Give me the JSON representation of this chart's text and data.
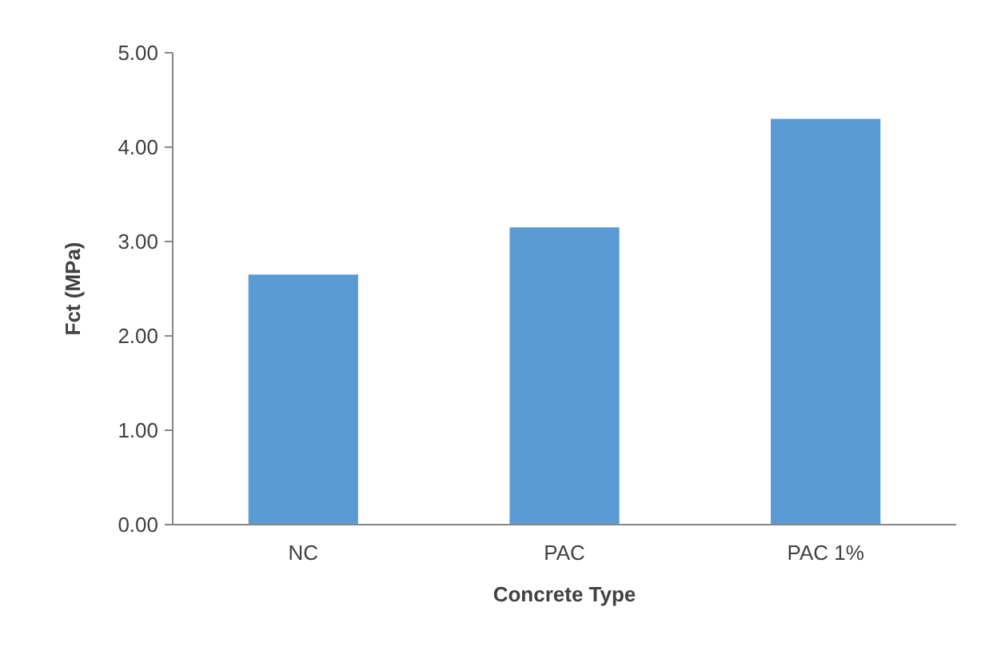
{
  "chart_data": {
    "type": "bar",
    "xlabel": "Concrete Type",
    "ylabel": "Fct (MPa)",
    "categories": [
      "NC",
      "PAC",
      "PAC 1%"
    ],
    "values": [
      2.65,
      3.15,
      4.3
    ],
    "color": "#5b9bd5",
    "ylim": [
      0,
      5
    ],
    "yticks": [
      {
        "value": 0,
        "label": "0.00"
      },
      {
        "value": 1,
        "label": "1.00"
      },
      {
        "value": 2,
        "label": "2.00"
      },
      {
        "value": 3,
        "label": "3.00"
      },
      {
        "value": 4,
        "label": "4.00"
      },
      {
        "value": 5,
        "label": "5.00"
      }
    ],
    "grid": false
  }
}
